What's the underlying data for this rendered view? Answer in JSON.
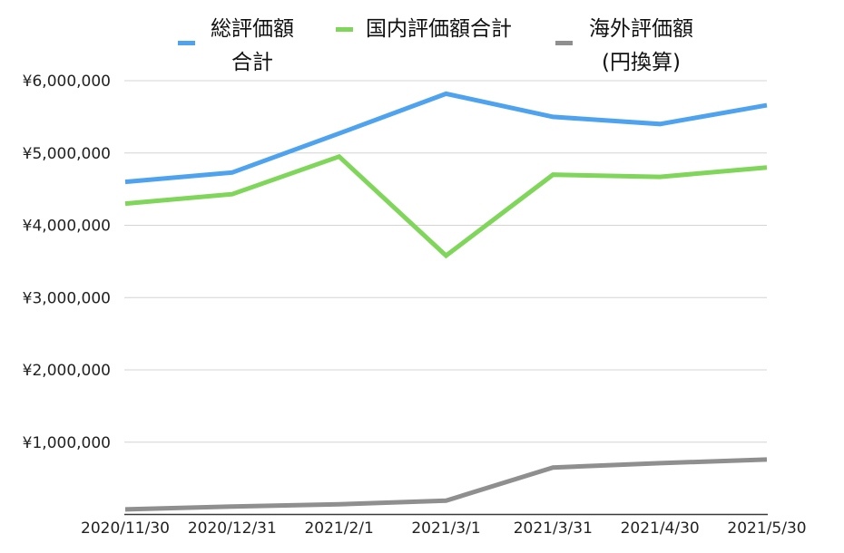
{
  "chart_data": {
    "type": "line",
    "categories": [
      "2020/11/30",
      "2020/12/31",
      "2021/2/1",
      "2021/3/1",
      "2021/3/31",
      "2021/4/30",
      "2021/5/30"
    ],
    "ylim": [
      0,
      6000000
    ],
    "yticks": [
      {
        "value": 1000000,
        "label": "¥1,000,000"
      },
      {
        "value": 2000000,
        "label": "¥2,000,000"
      },
      {
        "value": 3000000,
        "label": "¥3,000,000"
      },
      {
        "value": 4000000,
        "label": "¥4,000,000"
      },
      {
        "value": 5000000,
        "label": "¥5,000,000"
      },
      {
        "value": 6000000,
        "label": "¥6,000,000"
      }
    ],
    "grid": true,
    "legend": "top",
    "series": [
      {
        "name": "総評価額\n合計",
        "color": "#4fa3ee",
        "values": [
          4600000,
          4730000,
          5270000,
          5820000,
          5500000,
          5400000,
          5660000
        ]
      },
      {
        "name": "国内評価額合計",
        "color": "#80d55b",
        "values": [
          4300000,
          4430000,
          4950000,
          3580000,
          4700000,
          4670000,
          4800000
        ]
      },
      {
        "name": "海外評価額\n(円換算)",
        "color": "#8f8f8f",
        "values": [
          70000,
          110000,
          140000,
          190000,
          650000,
          710000,
          760000
        ]
      }
    ]
  }
}
